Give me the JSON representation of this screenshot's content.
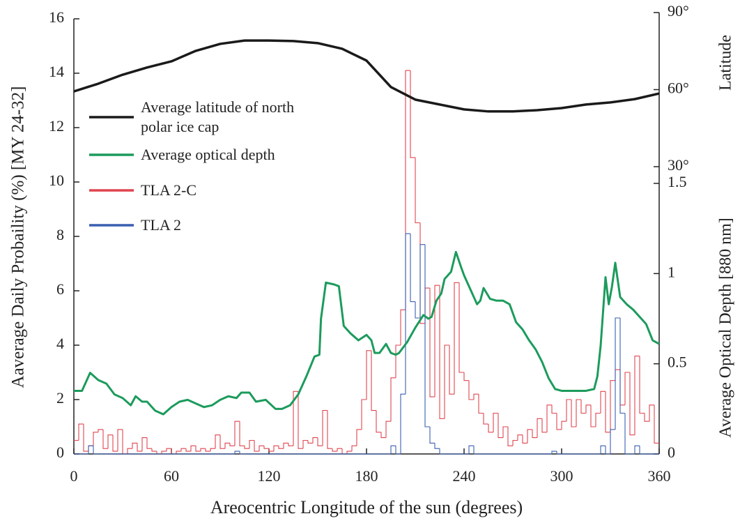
{
  "chart_data": {
    "type": "line",
    "xlabel": "Areocentric Longitude of the sun (degrees)",
    "ylabel": "Aaverage Daily Probaility (%) [MY 24-32]",
    "y2label": "Latitude",
    "y3label": "Average Optical Depth [880 nm]",
    "xlim": [
      0,
      360
    ],
    "xticks": [
      0,
      60,
      120,
      180,
      240,
      300,
      360
    ],
    "ylim": [
      0,
      16
    ],
    "yticks": [
      0,
      2,
      4,
      6,
      8,
      10,
      12,
      14,
      16
    ],
    "y2lim": [
      30,
      90
    ],
    "y2ticks": [
      {
        "value": 30,
        "label": "30°"
      },
      {
        "value": 60,
        "label": "60°"
      },
      {
        "value": 90,
        "label": "90°"
      }
    ],
    "y3lim": [
      0,
      1.5
    ],
    "y3ticks": [
      0,
      0.5,
      1,
      1.5
    ],
    "grid": false,
    "series": [
      {
        "name": "Average latitude of north polar ice cap",
        "color": "#1a1a1a",
        "axis": "y2",
        "x": [
          0,
          15,
          30,
          45,
          60,
          75,
          90,
          105,
          120,
          135,
          150,
          165,
          180,
          195,
          210,
          225,
          240,
          255,
          270,
          285,
          300,
          315,
          330,
          345,
          360
        ],
        "values": [
          59.3,
          62.3,
          65.8,
          68.6,
          71.0,
          75.1,
          77.8,
          79.1,
          79.1,
          78.9,
          78.1,
          75.9,
          71.3,
          61.0,
          56.1,
          54.2,
          52.3,
          51.5,
          51.5,
          52.0,
          52.8,
          54.2,
          55.0,
          56.3,
          58.5
        ]
      },
      {
        "name": "Average optical depth",
        "color": "#1c9b5c",
        "axis": "y3",
        "x": [
          0,
          5,
          10,
          15,
          20,
          25,
          30,
          35,
          38,
          42,
          45,
          50,
          55,
          60,
          65,
          70,
          75,
          80,
          85,
          90,
          95,
          100,
          103,
          108,
          112,
          118,
          124,
          128,
          133,
          138,
          143,
          148,
          151,
          152,
          155,
          160,
          163,
          166,
          170,
          175,
          180,
          183,
          185,
          188,
          192,
          195,
          198,
          200,
          205,
          210,
          215,
          218,
          220,
          223,
          226,
          228,
          232,
          235,
          238,
          240,
          245,
          248,
          250,
          252,
          256,
          260,
          264,
          268,
          272,
          276,
          280,
          284,
          288,
          292,
          296,
          300,
          303,
          306,
          310,
          315,
          320,
          322,
          324,
          327,
          329,
          331,
          333,
          336,
          340,
          344,
          348,
          352,
          356,
          360
        ],
        "values": [
          0.35,
          0.35,
          0.45,
          0.41,
          0.39,
          0.33,
          0.31,
          0.27,
          0.32,
          0.29,
          0.29,
          0.24,
          0.22,
          0.26,
          0.29,
          0.3,
          0.28,
          0.26,
          0.27,
          0.3,
          0.32,
          0.31,
          0.34,
          0.34,
          0.29,
          0.3,
          0.25,
          0.25,
          0.27,
          0.33,
          0.43,
          0.54,
          0.55,
          0.75,
          0.95,
          0.94,
          0.93,
          0.71,
          0.67,
          0.63,
          0.66,
          0.63,
          0.56,
          0.56,
          0.61,
          0.56,
          0.55,
          0.56,
          0.62,
          0.7,
          0.77,
          0.75,
          0.76,
          0.85,
          0.89,
          0.97,
          1.01,
          1.12,
          1.04,
          0.99,
          0.89,
          0.83,
          0.85,
          0.92,
          0.86,
          0.85,
          0.85,
          0.83,
          0.73,
          0.69,
          0.63,
          0.58,
          0.51,
          0.42,
          0.36,
          0.35,
          0.35,
          0.35,
          0.35,
          0.35,
          0.36,
          0.43,
          0.6,
          0.98,
          0.83,
          0.93,
          1.06,
          0.87,
          0.83,
          0.8,
          0.76,
          0.72,
          0.63,
          0.61
        ]
      },
      {
        "name": "TLA 2-C",
        "color": "#e0454f",
        "axis": "y",
        "drawstyle": "steps-post",
        "x": [
          0,
          3,
          6,
          9,
          12,
          15,
          18,
          21,
          24,
          27,
          30,
          33,
          36,
          39,
          42,
          45,
          48,
          51,
          54,
          57,
          60,
          63,
          66,
          69,
          72,
          75,
          78,
          81,
          84,
          87,
          90,
          93,
          96,
          99,
          102,
          105,
          108,
          111,
          114,
          117,
          120,
          123,
          126,
          129,
          132,
          135,
          138,
          141,
          144,
          147,
          150,
          153,
          156,
          159,
          162,
          165,
          168,
          171,
          174,
          177,
          180,
          183,
          186,
          189,
          192,
          195,
          198,
          201,
          204,
          207,
          210,
          213,
          216,
          219,
          222,
          225,
          228,
          231,
          234,
          237,
          240,
          243,
          246,
          249,
          252,
          255,
          258,
          261,
          264,
          267,
          270,
          273,
          276,
          279,
          282,
          285,
          288,
          291,
          294,
          297,
          300,
          303,
          306,
          309,
          312,
          315,
          318,
          321,
          324,
          327,
          330,
          333,
          336,
          339,
          342,
          345,
          348,
          351,
          354,
          357
        ],
        "values": [
          0.5,
          1.1,
          0.1,
          0.3,
          0.8,
          0.9,
          0.2,
          0.7,
          0.1,
          0.9,
          0,
          0.2,
          0.4,
          0.1,
          0.6,
          0.2,
          0.1,
          0,
          0.1,
          0.2,
          0,
          0.1,
          0.2,
          0.1,
          0.3,
          0.1,
          0.2,
          0.1,
          0.2,
          0.7,
          0.2,
          0.4,
          0.3,
          1.2,
          0.3,
          0.2,
          0.5,
          0.1,
          0.3,
          0.2,
          0.1,
          0.3,
          0.2,
          0.4,
          0.3,
          2.3,
          0.2,
          0.5,
          0.4,
          0.6,
          0.3,
          1.6,
          0.2,
          0.1,
          0.2,
          0,
          0.1,
          0.3,
          0.9,
          2.0,
          3.8,
          1.6,
          0.8,
          0.6,
          1.2,
          2.8,
          4.0,
          5.3,
          14.1,
          10.9,
          8.5,
          4.8,
          6.1,
          2.1,
          6.2,
          1.3,
          4.0,
          2.2,
          6.3,
          3.0,
          2.7,
          2.0,
          2.2,
          1.5,
          1.1,
          0.8,
          1.5,
          0.6,
          1.0,
          0.3,
          0.5,
          0.7,
          0.4,
          0.9,
          0.6,
          1.3,
          0.8,
          1.8,
          1.5,
          0.9,
          1.2,
          2.0,
          1.0,
          2.0,
          1.5,
          1.8,
          1.0,
          1.5,
          2.3,
          0.8,
          2.7,
          3.1,
          1.8,
          3.0,
          0.7,
          3.6,
          1.5,
          1.2,
          1.8,
          0.4
        ]
      },
      {
        "name": "TLA 2",
        "color": "#3a5fb0",
        "axis": "y",
        "drawstyle": "steps-post",
        "x": [
          0,
          3,
          6,
          9,
          12,
          15,
          18,
          21,
          24,
          27,
          30,
          33,
          36,
          39,
          42,
          45,
          48,
          51,
          54,
          57,
          60,
          63,
          66,
          69,
          72,
          75,
          78,
          81,
          84,
          87,
          90,
          93,
          96,
          99,
          102,
          105,
          108,
          111,
          114,
          117,
          120,
          123,
          126,
          129,
          132,
          135,
          138,
          141,
          144,
          147,
          150,
          153,
          156,
          159,
          162,
          165,
          168,
          171,
          174,
          177,
          180,
          183,
          186,
          189,
          192,
          195,
          198,
          201,
          204,
          207,
          210,
          213,
          216,
          219,
          222,
          225,
          228,
          231,
          234,
          237,
          240,
          243,
          246,
          249,
          252,
          255,
          258,
          261,
          264,
          267,
          270,
          273,
          276,
          279,
          282,
          285,
          288,
          291,
          294,
          297,
          300,
          303,
          306,
          309,
          312,
          315,
          318,
          321,
          324,
          327,
          330,
          333,
          336,
          339,
          342,
          345,
          348,
          351,
          354,
          357
        ],
        "values": [
          0,
          0,
          0,
          0.3,
          0,
          0,
          0,
          0,
          0,
          0,
          0,
          0,
          0,
          0,
          0,
          0,
          0,
          0,
          0,
          0,
          0,
          0,
          0,
          0,
          0,
          0,
          0,
          0,
          0,
          0,
          0,
          0,
          0,
          0.1,
          0,
          0,
          0,
          0,
          0,
          0,
          0,
          0,
          0,
          0,
          0,
          0,
          0,
          0,
          0,
          0,
          0,
          0,
          0,
          0,
          0,
          0,
          0,
          0,
          0,
          0,
          0,
          0,
          0,
          0,
          0,
          0.3,
          0,
          2.2,
          8.1,
          5.6,
          5.0,
          7.7,
          1.0,
          0.4,
          0.2,
          0,
          0,
          0,
          0,
          0,
          0,
          0.3,
          0,
          0,
          0,
          0,
          0,
          0,
          0,
          0,
          0,
          0,
          0,
          0,
          0,
          0,
          0,
          0,
          0.1,
          0,
          0,
          0,
          0,
          0,
          0,
          0,
          0,
          0,
          0.3,
          0,
          0.9,
          5.0,
          1.5,
          0,
          0,
          0.3,
          0,
          0,
          0,
          0
        ]
      }
    ]
  }
}
